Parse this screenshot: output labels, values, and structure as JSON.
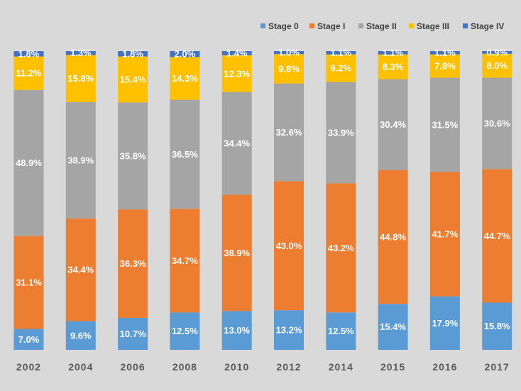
{
  "chart_data": {
    "type": "bar",
    "stacked": true,
    "normalized": true,
    "title": "",
    "xlabel": "",
    "ylabel": "",
    "ylim": [
      0,
      100
    ],
    "grid": false,
    "legend_position": "top-right",
    "categories": [
      "2002",
      "2004",
      "2006",
      "2008",
      "2010",
      "2012",
      "2014",
      "2015",
      "2016",
      "2017"
    ],
    "series": [
      {
        "name": "Stage 0",
        "color": "#5b9bd5",
        "values": [
          7.0,
          9.6,
          10.7,
          12.5,
          13.0,
          13.2,
          12.5,
          15.4,
          17.9,
          15.8
        ],
        "labels": [
          "7.0%",
          "9.6%",
          "10.7%",
          "12.5%",
          "13.0%",
          "13.2%",
          "12.5%",
          "15.4%",
          "17.9%",
          "15.8%"
        ]
      },
      {
        "name": "Stage I",
        "color": "#ed7d31",
        "values": [
          31.1,
          34.4,
          36.3,
          34.7,
          38.9,
          43.0,
          43.2,
          44.8,
          41.7,
          44.7
        ],
        "labels": [
          "31.1%",
          "34.4%",
          "36.3%",
          "34.7%",
          "38.9%",
          "43.0%",
          "43.2%",
          "44.8%",
          "41.7%",
          "44.7%"
        ]
      },
      {
        "name": "Stage II",
        "color": "#a5a5a5",
        "values": [
          48.9,
          38.9,
          35.8,
          36.5,
          34.4,
          32.6,
          33.9,
          30.4,
          31.5,
          30.6
        ],
        "labels": [
          "48.9%",
          "38.9%",
          "35.8%",
          "36.5%",
          "34.4%",
          "32.6%",
          "33.9%",
          "30.4%",
          "31.5%",
          "30.6%"
        ]
      },
      {
        "name": "Stage III",
        "color": "#ffc000",
        "values": [
          11.2,
          15.8,
          15.4,
          14.3,
          12.3,
          9.8,
          9.2,
          8.3,
          7.8,
          8.0
        ],
        "labels": [
          "11.2%",
          "15.8%",
          "15.4%",
          "14.3%",
          "12.3%",
          "9.8%",
          "9.2%",
          "8.3%",
          "7.8%",
          "8.0%"
        ]
      },
      {
        "name": "Stage IV",
        "color": "#4472c4",
        "values": [
          1.8,
          1.3,
          1.8,
          2.0,
          1.4,
          1.0,
          1.1,
          1.1,
          1.1,
          0.9
        ],
        "labels": [
          "1.8%",
          "1.3%",
          "1.8%",
          "2.0%",
          "1.4%",
          "1.0%",
          "1.1%",
          "1.1%",
          "1.1%",
          "0.9%"
        ]
      }
    ]
  }
}
